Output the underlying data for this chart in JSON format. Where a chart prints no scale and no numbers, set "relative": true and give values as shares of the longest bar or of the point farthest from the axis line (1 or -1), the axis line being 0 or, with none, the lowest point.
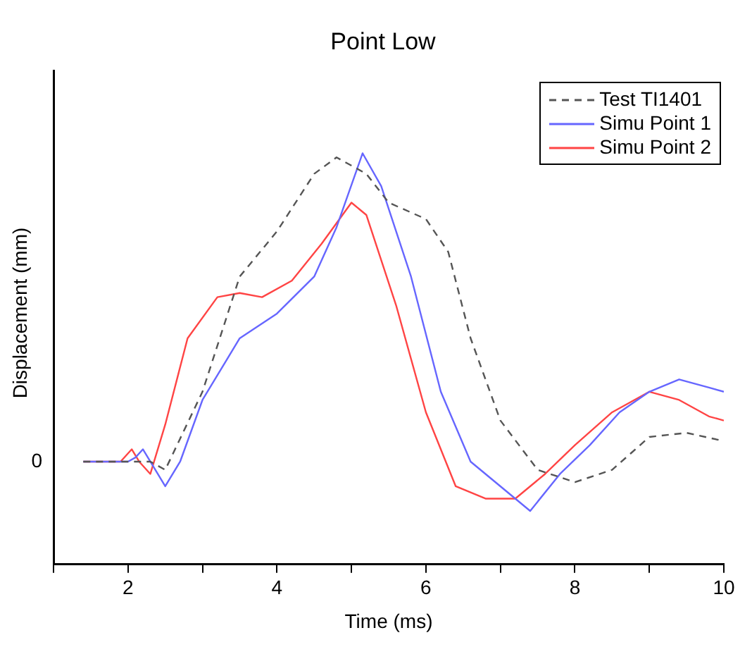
{
  "chart_data": {
    "type": "line",
    "title": "Point Low",
    "xlabel": "Time (ms)",
    "ylabel": "Displacement (mm)",
    "relative": true,
    "xlim": [
      1,
      10
    ],
    "xticks": [
      {
        "value": 1,
        "label": null
      },
      2,
      {
        "value": 3,
        "label": null
      },
      4,
      {
        "value": 5,
        "label": null
      },
      6,
      {
        "value": 7,
        "label": null
      },
      8,
      {
        "value": 9,
        "label": null
      },
      10
    ],
    "annotations": [
      "0"
    ],
    "grid": false,
    "legend": "top right",
    "marker": "none",
    "series": [
      {
        "name": "Test TI1401",
        "color": "#555555",
        "line_style": "dashed",
        "x": [
          1.4,
          2.0,
          2.3,
          2.5,
          3.0,
          3.5,
          4.0,
          4.5,
          4.8,
          5.2,
          5.5,
          6.0,
          6.3,
          6.6,
          7.0,
          7.5,
          8.0,
          8.5,
          9.0,
          9.5,
          10.0
        ],
        "values": [
          0.25,
          0.25,
          0.25,
          0.23,
          0.42,
          0.7,
          0.81,
          0.95,
          0.99,
          0.95,
          0.88,
          0.84,
          0.76,
          0.55,
          0.35,
          0.23,
          0.2,
          0.23,
          0.31,
          0.32,
          0.3
        ]
      },
      {
        "name": "Simu Point 1",
        "color": "#6666ff",
        "line_style": "solid",
        "x": [
          1.4,
          2.0,
          2.1,
          2.2,
          2.3,
          2.5,
          2.7,
          3.0,
          3.5,
          4.0,
          4.5,
          4.8,
          5.15,
          5.4,
          5.8,
          6.2,
          6.6,
          7.0,
          7.4,
          7.8,
          8.2,
          8.6,
          9.0,
          9.4,
          9.8,
          10.0
        ],
        "values": [
          0.25,
          0.25,
          0.26,
          0.28,
          0.25,
          0.19,
          0.25,
          0.4,
          0.55,
          0.61,
          0.7,
          0.82,
          1.0,
          0.92,
          0.7,
          0.42,
          0.25,
          0.19,
          0.13,
          0.22,
          0.29,
          0.37,
          0.42,
          0.45,
          0.43,
          0.42
        ]
      },
      {
        "name": "Simu Point 2",
        "color": "#ff4444",
        "line_style": "solid",
        "x": [
          1.4,
          1.9,
          2.05,
          2.15,
          2.3,
          2.5,
          2.8,
          3.2,
          3.5,
          3.8,
          4.2,
          4.6,
          5.0,
          5.2,
          5.6,
          6.0,
          6.4,
          6.8,
          7.2,
          7.6,
          8.0,
          8.5,
          9.0,
          9.4,
          9.8,
          10.0
        ],
        "values": [
          0.25,
          0.25,
          0.28,
          0.25,
          0.22,
          0.34,
          0.55,
          0.65,
          0.66,
          0.65,
          0.69,
          0.78,
          0.88,
          0.85,
          0.63,
          0.37,
          0.19,
          0.16,
          0.16,
          0.22,
          0.29,
          0.37,
          0.42,
          0.4,
          0.36,
          0.35
        ]
      }
    ]
  }
}
